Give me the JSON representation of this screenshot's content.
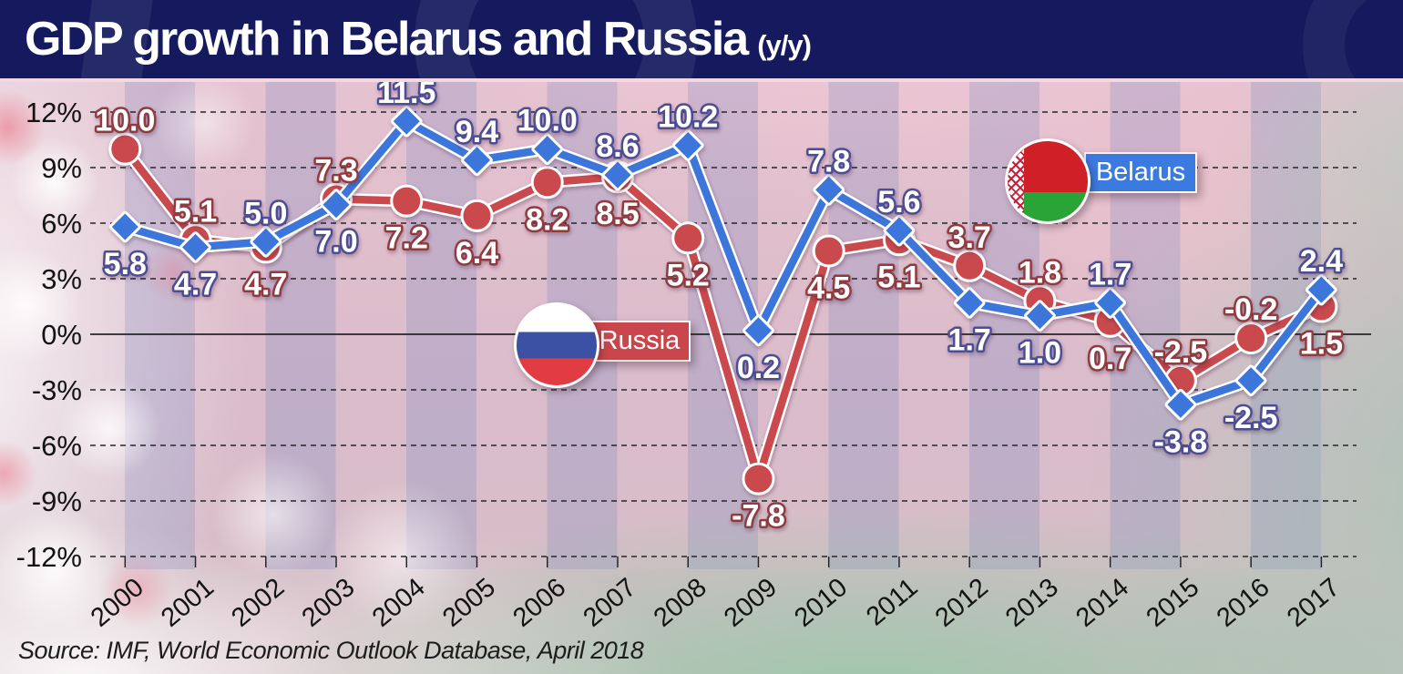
{
  "header": {
    "title": "GDP growth in Belarus and Russia",
    "subtitle": "(y/y)"
  },
  "source": "Source: IMF, World Economic Outlook Database, April 2018",
  "legend": {
    "russia": {
      "label": "Russia",
      "box_color": "#c9474c"
    },
    "belarus": {
      "label": "Belarus",
      "box_color": "#3b7be0"
    }
  },
  "chart_data": {
    "type": "line",
    "title": "GDP growth in Belarus and Russia (y/y)",
    "categories": [
      "2000",
      "2001",
      "2002",
      "2003",
      "2004",
      "2005",
      "2006",
      "2007",
      "2008",
      "2009",
      "2010",
      "2011",
      "2012",
      "2013",
      "2014",
      "2015",
      "2016",
      "2017"
    ],
    "series": [
      {
        "name": "Russia",
        "color": "#c9484e",
        "marker": "circle",
        "label_stroke": "#8f3a40",
        "values": [
          10.0,
          5.1,
          4.7,
          7.3,
          7.2,
          6.4,
          8.2,
          8.5,
          5.2,
          -7.8,
          4.5,
          5.1,
          3.7,
          1.8,
          0.7,
          -2.5,
          -0.2,
          1.5
        ],
        "label_pos": [
          "above",
          "above",
          "below",
          "above",
          "below",
          "below",
          "below",
          "below",
          "below",
          "below",
          "below",
          "below",
          "above",
          "above",
          "below",
          "above",
          "above",
          "below"
        ]
      },
      {
        "name": "Belarus",
        "color": "#3e76db",
        "marker": "diamond",
        "label_stroke": "#4d4d94",
        "values": [
          5.8,
          4.7,
          5.0,
          7.0,
          11.5,
          9.4,
          10.0,
          8.6,
          10.2,
          0.2,
          7.8,
          5.6,
          1.7,
          1.0,
          1.7,
          -3.8,
          -2.5,
          2.4
        ],
        "label_pos": [
          "below",
          "below",
          "above",
          "below",
          "above",
          "above",
          "above",
          "above",
          "above",
          "below",
          "above",
          "above",
          "below",
          "below",
          "above",
          "below",
          "below",
          "above"
        ]
      }
    ],
    "yticks": [
      12,
      9,
      6,
      3,
      0,
      -3,
      -6,
      -9,
      -12
    ],
    "ytick_labels": [
      "12%",
      "9%",
      "6%",
      "3%",
      "0%",
      "-3%",
      "-6%",
      "-9%",
      "-12%"
    ],
    "ylim": [
      -12,
      12
    ],
    "grid": "horizontal-dashed, solid zero line",
    "legend_position": "russia mid-chart, belarus upper-right"
  }
}
